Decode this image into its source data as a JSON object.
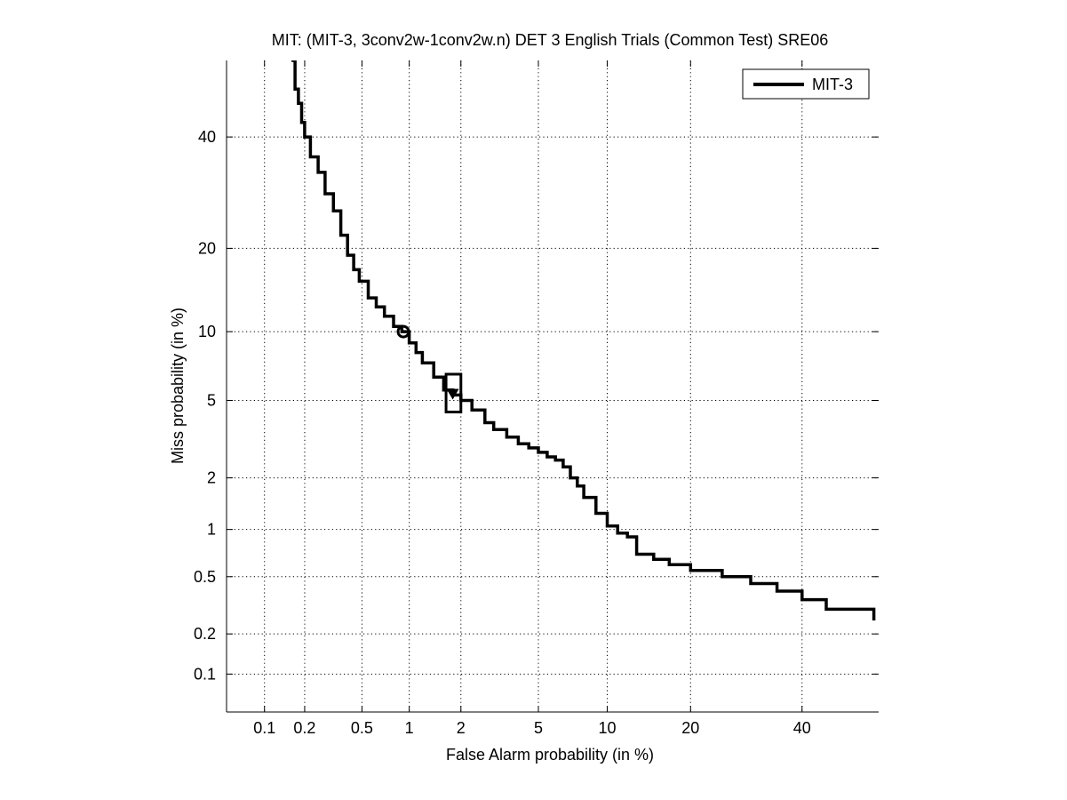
{
  "chart_data": {
    "type": "line",
    "title": "MIT: (MIT-3, 3conv2w-1conv2w.n) DET 3 English Trials (Common Test) SRE06",
    "xlabel": "False Alarm probability (in %)",
    "ylabel": "Miss probability (in %)",
    "scale": "normal-deviate (probit)",
    "xlim": [
      0.05,
      56
    ],
    "ylim": [
      0.05,
      56
    ],
    "x_ticks": [
      0.1,
      0.2,
      0.5,
      1,
      2,
      5,
      10,
      20,
      40
    ],
    "x_tick_labels": [
      "0.1",
      "0.2",
      "0.5",
      "1",
      "2",
      "5",
      "10",
      "20",
      "40"
    ],
    "y_ticks": [
      0.1,
      0.2,
      0.5,
      1,
      2,
      5,
      10,
      20,
      40
    ],
    "y_tick_labels": [
      "0.1",
      "0.2",
      "0.5",
      "1",
      "2",
      "5",
      "10",
      "20",
      "40"
    ],
    "grid": true,
    "legend_position": "top-right",
    "series": [
      {
        "name": "MIT-3",
        "color": "#000000",
        "x": [
          0.16,
          0.17,
          0.18,
          0.19,
          0.2,
          0.22,
          0.25,
          0.28,
          0.32,
          0.36,
          0.4,
          0.44,
          0.48,
          0.55,
          0.62,
          0.7,
          0.8,
          0.9,
          1.0,
          1.1,
          1.2,
          1.4,
          1.6,
          1.8,
          2.0,
          2.3,
          2.7,
          3.0,
          3.5,
          4.0,
          4.5,
          5.0,
          5.5,
          6.0,
          6.5,
          7.0,
          7.5,
          8.0,
          9.0,
          10.0,
          11.0,
          12.0,
          13.0,
          15.0,
          17.0,
          20.0,
          25.0,
          30.0,
          35.0,
          40.0,
          45.0,
          55.0
        ],
        "y": [
          56,
          50,
          47,
          43,
          40,
          36,
          33,
          29,
          26,
          22,
          19,
          17,
          15.5,
          13.5,
          12.5,
          11.5,
          10.5,
          10.0,
          9.0,
          8.2,
          7.4,
          6.4,
          5.6,
          5.3,
          5.0,
          4.5,
          3.9,
          3.6,
          3.3,
          3.05,
          2.9,
          2.75,
          2.6,
          2.5,
          2.3,
          2.0,
          1.8,
          1.55,
          1.25,
          1.05,
          0.95,
          0.9,
          0.7,
          0.65,
          0.6,
          0.55,
          0.5,
          0.45,
          0.4,
          0.35,
          0.3,
          0.25
        ]
      }
    ],
    "markers": [
      {
        "kind": "circle",
        "x": 0.92,
        "y": 10.0
      },
      {
        "kind": "triangle-down",
        "x": 1.8,
        "y": 5.4
      },
      {
        "kind": "confidence-box",
        "x_range": [
          1.65,
          2.0
        ],
        "y_range": [
          4.4,
          6.6
        ]
      }
    ]
  }
}
